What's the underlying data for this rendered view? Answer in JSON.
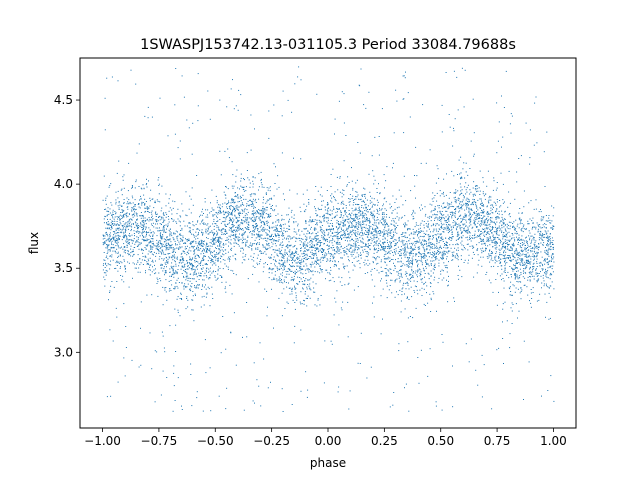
{
  "chart_data": {
    "type": "scatter",
    "title": "1SWASPJ153742.13-031105.3 Period 33084.79688s",
    "xlabel": "phase",
    "ylabel": "flux",
    "xlim": [
      -1.1,
      1.1
    ],
    "ylim": [
      2.55,
      4.75
    ],
    "xticks": [
      -1.0,
      -0.75,
      -0.5,
      -0.25,
      0.0,
      0.25,
      0.5,
      0.75,
      1.0
    ],
    "xtick_labels": [
      "−1.00",
      "−0.75",
      "−0.50",
      "−0.25",
      "0.00",
      "0.25",
      "0.50",
      "0.75",
      "1.00"
    ],
    "yticks": [
      3.0,
      3.5,
      4.0,
      4.5
    ],
    "ytick_labels": [
      "3.0",
      "3.5",
      "4.0",
      "4.5"
    ],
    "grid": false,
    "marker_color": "#1f77b4",
    "trend": {
      "description_points_phase": [
        -1.0,
        -0.875,
        -0.625,
        -0.375,
        -0.125,
        0.0,
        0.125,
        0.375,
        0.625,
        0.875,
        1.0
      ],
      "description_points_flux": [
        3.67,
        3.76,
        3.57,
        3.79,
        3.57,
        3.68,
        3.74,
        3.59,
        3.8,
        3.58,
        3.62
      ]
    }
  }
}
